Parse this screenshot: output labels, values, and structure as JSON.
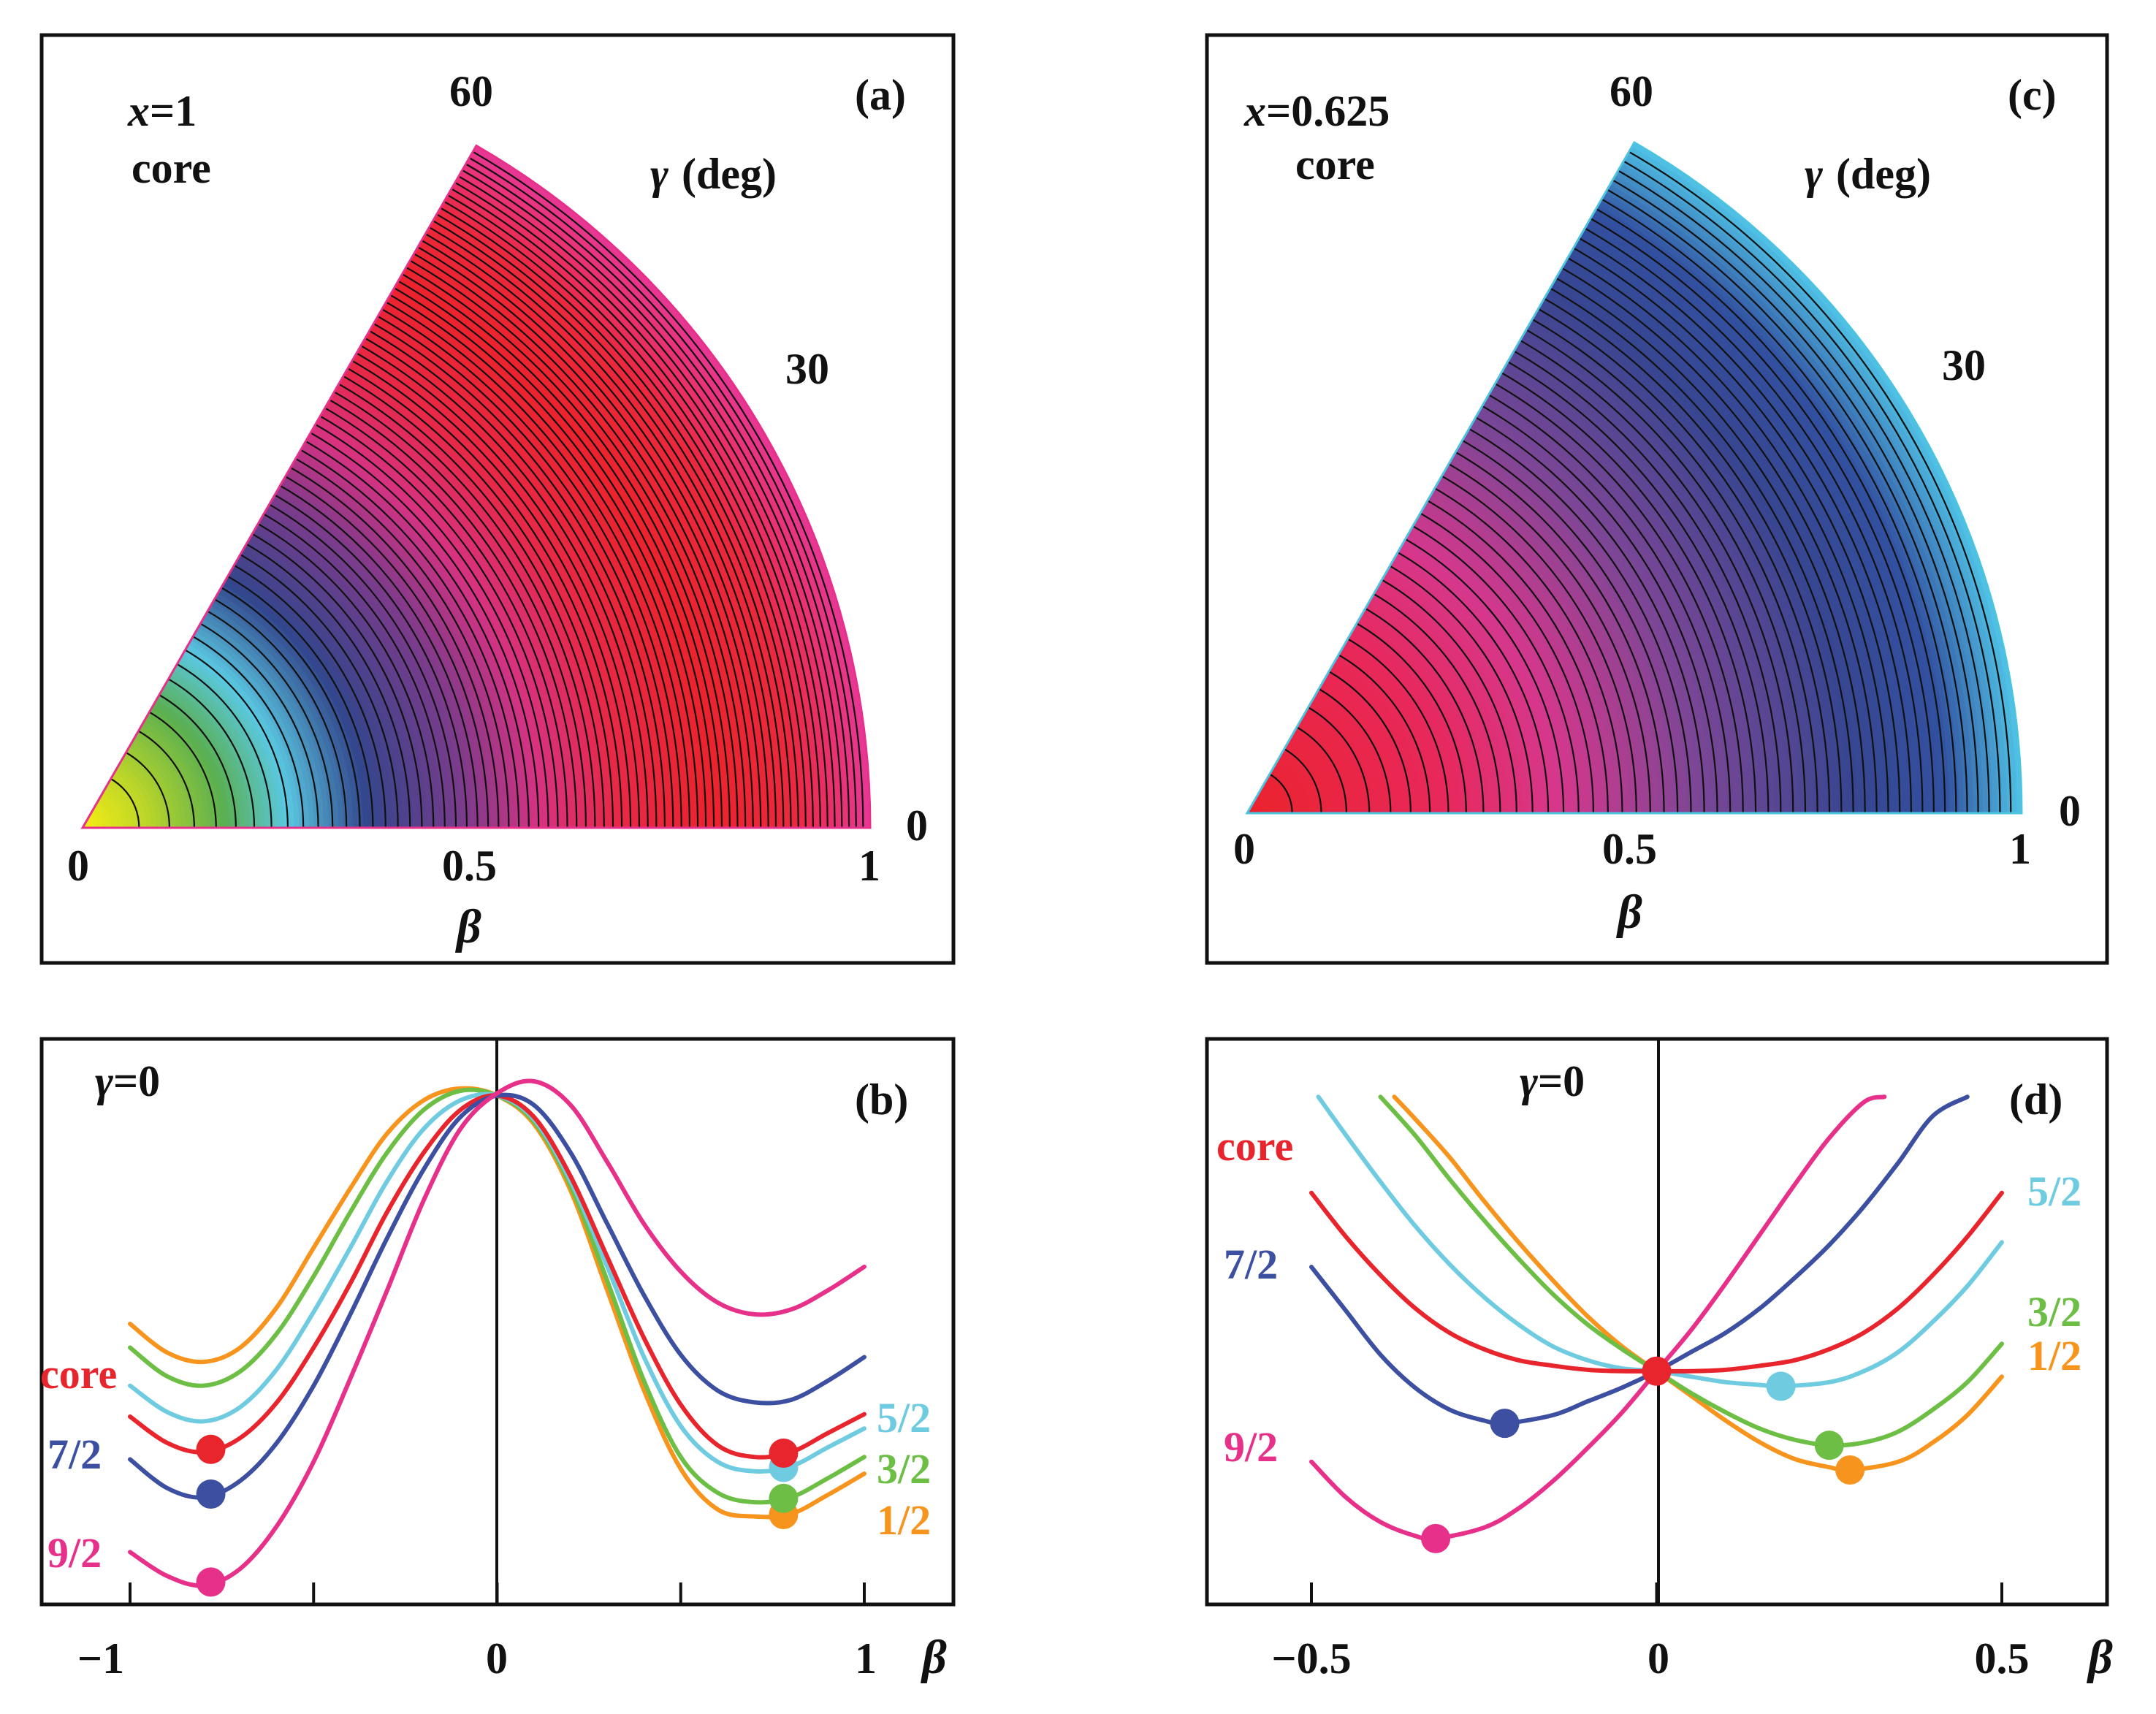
{
  "panels": {
    "a": {
      "tag": "(a)",
      "x_label_var": "x",
      "x_label_value": "=1",
      "sub_label": "core",
      "gamma_var": "γ",
      "gamma_unit": "(deg)",
      "beta_var": "β",
      "beta_ticks": [
        "0",
        "0.5",
        "1"
      ],
      "gamma_ticks": [
        "0",
        "30",
        "60"
      ]
    },
    "b": {
      "tag": "(b)",
      "gamma_var": "γ",
      "gamma_value": "=0",
      "beta_var": "β",
      "x_ticks": [
        "−1",
        "0",
        "1"
      ],
      "left_labels": [
        "core",
        "7/2",
        "9/2"
      ],
      "right_labels": [
        "5/2",
        "3/2",
        "1/2"
      ]
    },
    "c": {
      "tag": "(c)",
      "x_label_var": "x",
      "x_label_value": "=0.625",
      "sub_label": "core",
      "gamma_var": "γ",
      "gamma_unit": "(deg)",
      "beta_var": "β",
      "beta_ticks": [
        "0",
        "0.5",
        "1"
      ],
      "gamma_ticks": [
        "0",
        "30",
        "60"
      ]
    },
    "d": {
      "tag": "(d)",
      "gamma_var": "γ",
      "gamma_value": "=0",
      "beta_var": "β",
      "x_ticks": [
        "−0.5",
        "0",
        "0.5"
      ],
      "left_labels": [
        "core",
        "7/2",
        "9/2"
      ],
      "right_labels": [
        "5/2",
        "3/2",
        "1/2"
      ]
    }
  },
  "colors": {
    "core": "#e8242c",
    "1/2": "#f7941d",
    "3/2": "#6dbe45",
    "5/2": "#6fcbe0",
    "7/2": "#3c4fa0",
    "9/2": "#e6308a"
  },
  "chart_data": [
    {
      "panel": "a",
      "type": "heatmap",
      "coordinates": "polar (beta-gamma plane)",
      "beta_range": [
        0,
        1
      ],
      "gamma_range_deg": [
        0,
        60
      ],
      "contours": "circular, centered at beta=0",
      "colormap_by_beta": [
        "yellow",
        "green",
        "cyan",
        "blue",
        "purple",
        "magenta",
        "red",
        "magenta"
      ],
      "minimum_beta": 0.75
    },
    {
      "panel": "b",
      "type": "line",
      "xlim": [
        -1,
        1
      ],
      "x_ticks": [
        -1,
        -0.5,
        0,
        0.5,
        1
      ],
      "series": [
        {
          "name": "core",
          "color": "#e8242c",
          "x": [
            -1,
            -0.9,
            -0.8,
            -0.7,
            -0.6,
            -0.5,
            -0.4,
            -0.3,
            -0.2,
            -0.1,
            0,
            0.1,
            0.2,
            0.3,
            0.4,
            0.5,
            0.6,
            0.7,
            0.8,
            0.9,
            1
          ],
          "y": [
            -0.81,
            -0.92,
            -0.96,
            -0.9,
            -0.75,
            -0.52,
            -0.25,
            0.05,
            0.3,
            0.48,
            0.54,
            0.45,
            0.2,
            -0.14,
            -0.48,
            -0.76,
            -0.93,
            -0.98,
            -0.96,
            -0.88,
            -0.8
          ],
          "minima_beta": [
            -0.78,
            0.78
          ]
        },
        {
          "name": "1/2",
          "color": "#f7941d",
          "x": [
            -1,
            -0.9,
            -0.8,
            -0.7,
            -0.6,
            -0.5,
            -0.4,
            -0.3,
            -0.2,
            -0.1,
            0,
            0.1,
            0.2,
            0.3,
            0.4,
            0.5,
            0.6,
            0.7,
            0.8,
            0.9,
            1
          ],
          "y": [
            -0.42,
            -0.54,
            -0.58,
            -0.52,
            -0.35,
            -0.1,
            0.15,
            0.38,
            0.52,
            0.57,
            0.54,
            0.42,
            0.14,
            -0.28,
            -0.7,
            -1.03,
            -1.2,
            -1.23,
            -1.22,
            -1.14,
            -1.05
          ],
          "minima_beta": [
            0.78
          ]
        },
        {
          "name": "3/2",
          "color": "#6dbe45",
          "x": [
            -1,
            -0.9,
            -0.8,
            -0.7,
            -0.6,
            -0.5,
            -0.4,
            -0.3,
            -0.2,
            -0.1,
            0,
            0.1,
            0.2,
            0.3,
            0.4,
            0.5,
            0.6,
            0.7,
            0.8,
            0.9,
            1
          ],
          "y": [
            -0.52,
            -0.64,
            -0.68,
            -0.62,
            -0.46,
            -0.22,
            0.05,
            0.3,
            0.48,
            0.56,
            0.54,
            0.43,
            0.16,
            -0.24,
            -0.66,
            -0.98,
            -1.13,
            -1.17,
            -1.15,
            -1.07,
            -0.98
          ],
          "minima_beta": [
            0.78
          ]
        },
        {
          "name": "5/2",
          "color": "#6fcbe0",
          "x": [
            -1,
            -0.9,
            -0.8,
            -0.7,
            -0.6,
            -0.5,
            -0.4,
            -0.3,
            -0.2,
            -0.1,
            0,
            0.1,
            0.2,
            0.3,
            0.4,
            0.5,
            0.6,
            0.7,
            0.8,
            0.9,
            1
          ],
          "y": [
            -0.68,
            -0.79,
            -0.83,
            -0.77,
            -0.61,
            -0.37,
            -0.1,
            0.18,
            0.4,
            0.52,
            0.54,
            0.44,
            0.18,
            -0.18,
            -0.56,
            -0.85,
            -1.0,
            -1.04,
            -1.02,
            -0.94,
            -0.86
          ],
          "minima_beta": [
            0.78
          ]
        },
        {
          "name": "7/2",
          "color": "#3c4fa0",
          "x": [
            -1,
            -0.9,
            -0.8,
            -0.7,
            -0.6,
            -0.5,
            -0.4,
            -0.3,
            -0.2,
            -0.1,
            0,
            0.1,
            0.2,
            0.3,
            0.4,
            0.5,
            0.6,
            0.7,
            0.8,
            0.9,
            1
          ],
          "y": [
            -0.99,
            -1.11,
            -1.15,
            -1.08,
            -0.92,
            -0.68,
            -0.38,
            -0.06,
            0.23,
            0.45,
            0.54,
            0.5,
            0.3,
            0.0,
            -0.3,
            -0.55,
            -0.7,
            -0.75,
            -0.74,
            -0.66,
            -0.56
          ],
          "minima_beta": [
            -0.78
          ]
        },
        {
          "name": "9/2",
          "color": "#e6308a",
          "x": [
            -1,
            -0.9,
            -0.8,
            -0.7,
            -0.6,
            -0.5,
            -0.4,
            -0.3,
            -0.2,
            -0.1,
            0,
            0.1,
            0.2,
            0.3,
            0.4,
            0.5,
            0.6,
            0.7,
            0.8,
            0.9,
            1
          ],
          "y": [
            -1.38,
            -1.48,
            -1.52,
            -1.45,
            -1.27,
            -1.0,
            -0.65,
            -0.28,
            0.1,
            0.4,
            0.55,
            0.6,
            0.5,
            0.26,
            0.0,
            -0.2,
            -0.33,
            -0.38,
            -0.36,
            -0.28,
            -0.18
          ],
          "minima_beta": [
            -0.78
          ]
        }
      ]
    },
    {
      "panel": "c",
      "type": "heatmap",
      "coordinates": "polar (beta-gamma plane)",
      "beta_range": [
        0,
        1
      ],
      "gamma_range_deg": [
        0,
        60
      ],
      "contours": "circular, centered at beta=0",
      "colormap_by_beta": [
        "red",
        "magenta",
        "purple",
        "blue",
        "cyan"
      ],
      "minimum_beta": 0
    },
    {
      "panel": "d",
      "type": "line",
      "xlim": [
        -0.5,
        0.5
      ],
      "x_ticks": [
        -0.5,
        0,
        0.5
      ],
      "series": [
        {
          "name": "core",
          "color": "#e8242c",
          "x": [
            -0.5,
            -0.45,
            -0.4,
            -0.35,
            -0.3,
            -0.25,
            -0.2,
            -0.15,
            -0.1,
            -0.05,
            0,
            0.05,
            0.1,
            0.15,
            0.2,
            0.25,
            0.3,
            0.35,
            0.4,
            0.45,
            0.5
          ],
          "y": [
            0.65,
            0.49,
            0.35,
            0.23,
            0.14,
            0.08,
            0.04,
            0.02,
            0.005,
            0.0,
            0.0,
            0.0,
            0.005,
            0.02,
            0.04,
            0.08,
            0.14,
            0.23,
            0.35,
            0.49,
            0.65
          ],
          "minima_beta": [
            0
          ]
        },
        {
          "name": "1/2",
          "color": "#f7941d",
          "x": [
            -0.38,
            -0.35,
            -0.3,
            -0.25,
            -0.2,
            -0.15,
            -0.1,
            -0.05,
            0,
            0.05,
            0.1,
            0.15,
            0.2,
            0.25,
            0.28,
            0.35,
            0.4,
            0.45,
            0.5
          ],
          "y": [
            1.0,
            0.92,
            0.78,
            0.62,
            0.47,
            0.33,
            0.2,
            0.09,
            0.0,
            -0.09,
            -0.18,
            -0.26,
            -0.32,
            -0.35,
            -0.36,
            -0.33,
            -0.26,
            -0.16,
            -0.02
          ],
          "minima_beta": [
            0.28
          ]
        },
        {
          "name": "3/2",
          "color": "#6dbe45",
          "x": [
            -0.4,
            -0.35,
            -0.3,
            -0.25,
            -0.2,
            -0.15,
            -0.1,
            -0.05,
            0,
            0.05,
            0.1,
            0.15,
            0.2,
            0.25,
            0.3,
            0.35,
            0.4,
            0.45,
            0.5
          ],
          "y": [
            1.0,
            0.86,
            0.7,
            0.55,
            0.41,
            0.28,
            0.17,
            0.08,
            0.0,
            -0.08,
            -0.15,
            -0.21,
            -0.25,
            -0.27,
            -0.26,
            -0.22,
            -0.14,
            -0.04,
            0.1
          ],
          "minima_beta": [
            0.25
          ]
        },
        {
          "name": "5/2",
          "color": "#6fcbe0",
          "x": [
            -0.49,
            -0.45,
            -0.4,
            -0.35,
            -0.3,
            -0.25,
            -0.2,
            -0.15,
            -0.1,
            -0.05,
            0,
            0.05,
            0.1,
            0.15,
            0.18,
            0.25,
            0.3,
            0.35,
            0.4,
            0.45,
            0.5
          ],
          "y": [
            1.0,
            0.86,
            0.69,
            0.53,
            0.39,
            0.27,
            0.17,
            0.09,
            0.04,
            0.01,
            0.0,
            -0.02,
            -0.04,
            -0.05,
            -0.055,
            -0.04,
            0.0,
            0.07,
            0.18,
            0.31,
            0.47
          ],
          "minima_beta": [
            0.18
          ]
        },
        {
          "name": "7/2",
          "color": "#3c4fa0",
          "x": [
            -0.5,
            -0.45,
            -0.4,
            -0.35,
            -0.3,
            -0.25,
            -0.22,
            -0.15,
            -0.1,
            -0.05,
            0,
            0.05,
            0.1,
            0.15,
            0.2,
            0.25,
            0.3,
            0.35,
            0.4,
            0.45
          ],
          "y": [
            0.38,
            0.22,
            0.06,
            -0.06,
            -0.14,
            -0.18,
            -0.19,
            -0.16,
            -0.11,
            -0.06,
            0.0,
            0.07,
            0.14,
            0.23,
            0.34,
            0.46,
            0.6,
            0.76,
            0.93,
            1.0
          ],
          "minima_beta": [
            -0.22
          ]
        },
        {
          "name": "9/2",
          "color": "#e6308a",
          "x": [
            -0.5,
            -0.45,
            -0.4,
            -0.35,
            -0.32,
            -0.25,
            -0.2,
            -0.15,
            -0.1,
            -0.05,
            0,
            0.05,
            0.1,
            0.15,
            0.2,
            0.25,
            0.3,
            0.33
          ],
          "y": [
            -0.33,
            -0.46,
            -0.55,
            -0.6,
            -0.61,
            -0.57,
            -0.5,
            -0.4,
            -0.28,
            -0.15,
            0.0,
            0.15,
            0.32,
            0.5,
            0.68,
            0.85,
            0.98,
            1.0
          ],
          "minima_beta": [
            -0.32
          ]
        }
      ]
    }
  ]
}
